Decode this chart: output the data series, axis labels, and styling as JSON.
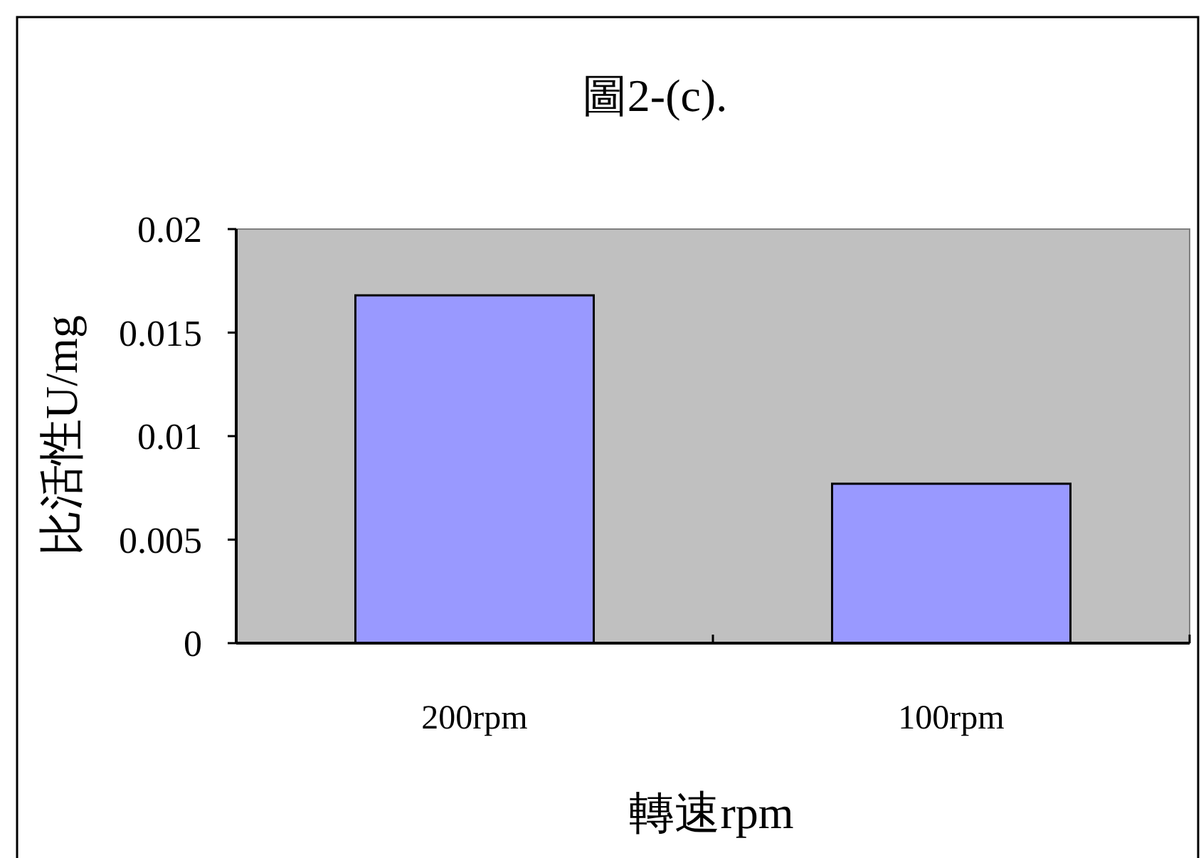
{
  "chart_data": {
    "type": "bar",
    "title": "圖2-(c).",
    "xlabel": "轉速rpm",
    "ylabel": "比活性U/mg",
    "categories": [
      "200rpm",
      "100rpm"
    ],
    "values": [
      0.0168,
      0.0077
    ],
    "color": "#9999ff",
    "ylim": [
      0,
      0.02
    ],
    "yticks": [
      0,
      0.005,
      0.01,
      0.015,
      0.02
    ]
  }
}
